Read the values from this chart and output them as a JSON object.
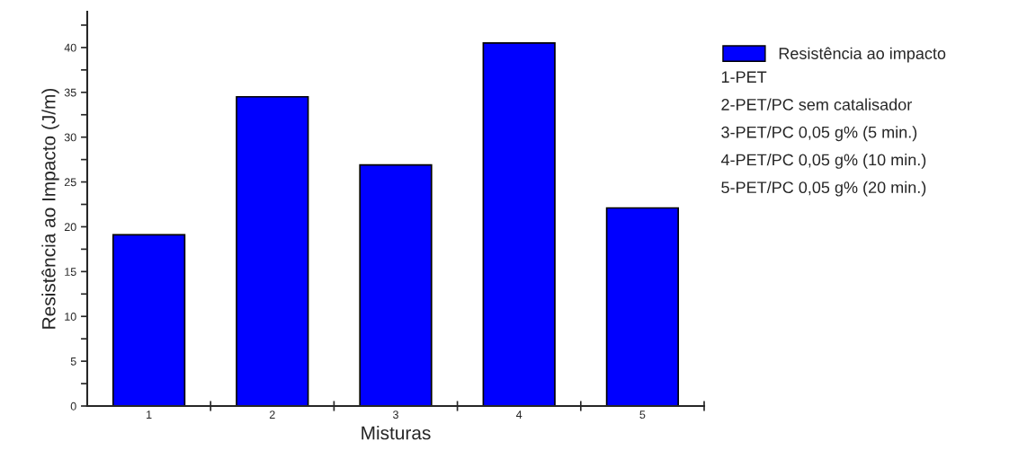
{
  "chart_data": {
    "type": "bar",
    "xlabel": "Misturas",
    "ylabel": "Resistência ao Impacto (J/m)",
    "categories": [
      "1",
      "2",
      "3",
      "4",
      "5"
    ],
    "series": [
      {
        "name": "Resistência ao impacto",
        "color": "#0000ff",
        "values": [
          19.1,
          34.5,
          26.9,
          40.5,
          22.1
        ]
      }
    ],
    "ylim": [
      0,
      44
    ],
    "yticks": [
      0,
      {
        "value": 2.5,
        "label": null
      },
      5,
      {
        "value": 7.5,
        "label": null
      },
      10,
      {
        "value": 12.5,
        "label": null
      },
      15,
      {
        "value": 17.5,
        "label": null
      },
      20,
      {
        "value": 22.5,
        "label": null
      },
      25,
      {
        "value": 27.5,
        "label": null
      },
      30,
      {
        "value": 32.5,
        "label": null
      },
      35,
      {
        "value": 37.5,
        "label": null
      },
      40,
      {
        "value": 42.5,
        "label": null
      }
    ],
    "legend": "right",
    "grid": false,
    "annotations": [
      "1-PET",
      "2-PET/PC sem catalisador",
      "3-PET/PC 0,05 g% (5 min.)",
      "4-PET/PC 0,05 g% (10 min.)",
      "5-PET/PC 0,05 g% (20 min.)"
    ]
  }
}
